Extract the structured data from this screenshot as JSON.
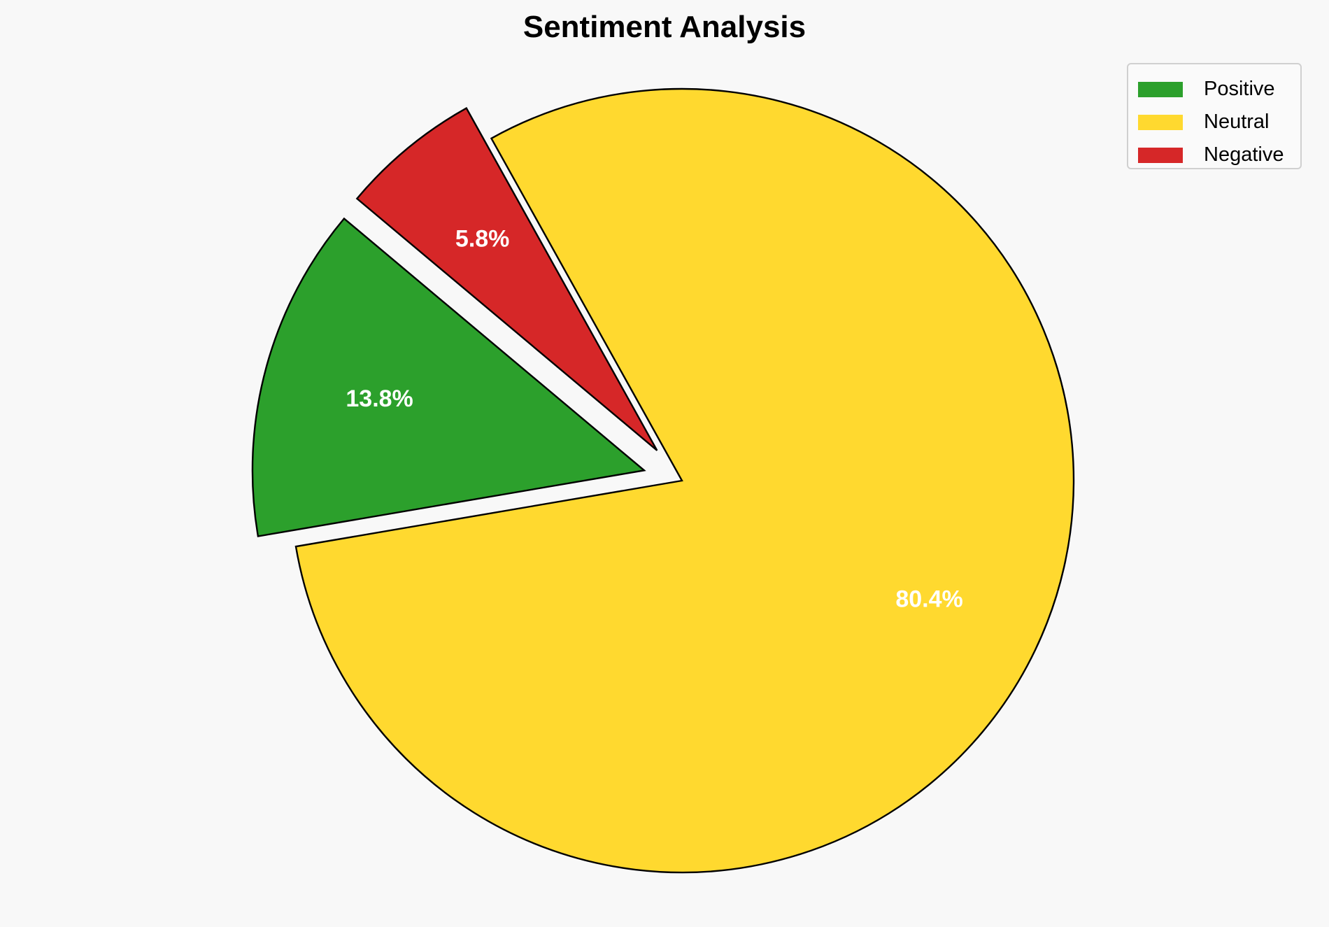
{
  "chart_data": {
    "type": "pie",
    "title": "Sentiment Analysis",
    "categories": [
      "Positive",
      "Neutral",
      "Negative"
    ],
    "values": [
      13.8,
      80.4,
      5.8
    ],
    "labels": [
      "13.8%",
      "80.4%",
      "5.8%"
    ],
    "colors": [
      "#2ca02c",
      "#ffd92f",
      "#d62728"
    ],
    "explode": [
      0.1,
      0,
      0.1
    ],
    "start_angle_deg": 140,
    "counterclockwise": true,
    "edge_color": "#000000",
    "label_color": "#ffffff",
    "legend_position": "top-right"
  }
}
